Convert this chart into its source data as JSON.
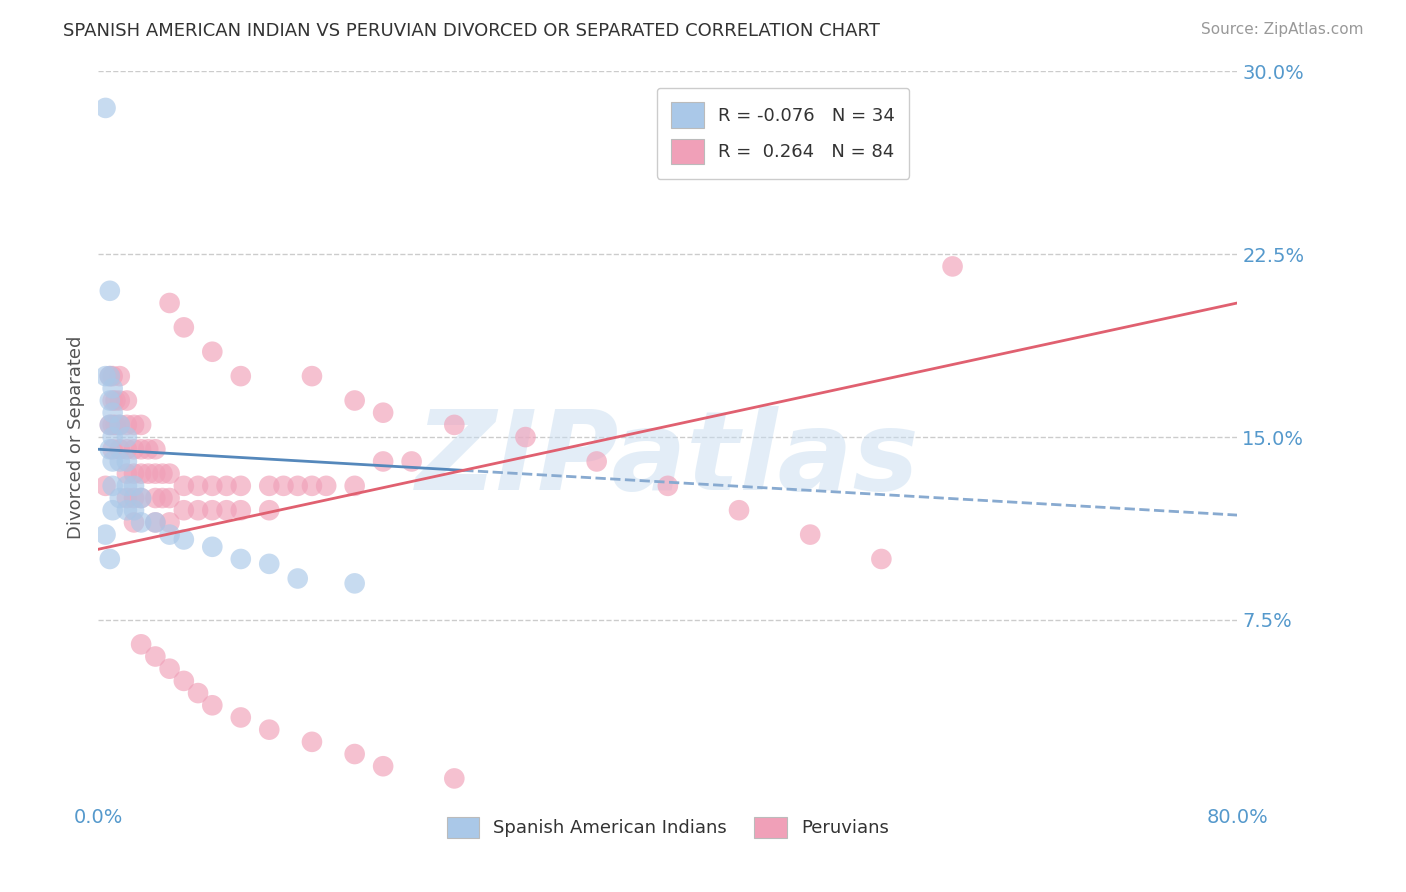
{
  "title": "SPANISH AMERICAN INDIAN VS PERUVIAN DIVORCED OR SEPARATED CORRELATION CHART",
  "source_text": "Source: ZipAtlas.com",
  "ylabel": "Divorced or Separated",
  "xmin": 0.0,
  "xmax": 0.8,
  "ymin": 0.0,
  "ymax": 0.3,
  "xtick_positions": [
    0.0,
    0.8
  ],
  "xtick_labels": [
    "0.0%",
    "80.0%"
  ],
  "ytick_positions": [
    0.075,
    0.15,
    0.225,
    0.3
  ],
  "ytick_labels": [
    "7.5%",
    "15.0%",
    "22.5%",
    "30.0%"
  ],
  "grid_color": "#cccccc",
  "background_color": "#ffffff",
  "color_blue": "#aac8e8",
  "color_pink": "#f0a0b8",
  "line_blue_solid": "#5588bb",
  "line_blue_dashed": "#88aad0",
  "line_pink": "#e06070",
  "tick_color": "#5599cc",
  "legend_label1": "Spanish American Indians",
  "legend_label2": "Peruvians",
  "watermark": "ZIPatlas",
  "blue_x": [
    0.005,
    0.005,
    0.008,
    0.008,
    0.008,
    0.008,
    0.008,
    0.01,
    0.01,
    0.01,
    0.01,
    0.01,
    0.01,
    0.015,
    0.015,
    0.015,
    0.02,
    0.02,
    0.02,
    0.02,
    0.025,
    0.025,
    0.03,
    0.03,
    0.04,
    0.05,
    0.06,
    0.08,
    0.1,
    0.12,
    0.14,
    0.18,
    0.005,
    0.008
  ],
  "blue_y": [
    0.285,
    0.175,
    0.21,
    0.175,
    0.165,
    0.155,
    0.145,
    0.17,
    0.16,
    0.15,
    0.14,
    0.13,
    0.12,
    0.155,
    0.14,
    0.125,
    0.15,
    0.14,
    0.13,
    0.12,
    0.13,
    0.12,
    0.125,
    0.115,
    0.115,
    0.11,
    0.108,
    0.105,
    0.1,
    0.098,
    0.092,
    0.09,
    0.11,
    0.1
  ],
  "pink_x": [
    0.005,
    0.008,
    0.008,
    0.01,
    0.01,
    0.01,
    0.01,
    0.012,
    0.012,
    0.015,
    0.015,
    0.015,
    0.015,
    0.02,
    0.02,
    0.02,
    0.02,
    0.02,
    0.025,
    0.025,
    0.025,
    0.025,
    0.025,
    0.03,
    0.03,
    0.03,
    0.03,
    0.035,
    0.035,
    0.04,
    0.04,
    0.04,
    0.04,
    0.045,
    0.045,
    0.05,
    0.05,
    0.05,
    0.06,
    0.06,
    0.07,
    0.07,
    0.08,
    0.08,
    0.09,
    0.09,
    0.1,
    0.1,
    0.12,
    0.12,
    0.13,
    0.14,
    0.15,
    0.16,
    0.18,
    0.2,
    0.22,
    0.05,
    0.06,
    0.08,
    0.1,
    0.15,
    0.18,
    0.2,
    0.25,
    0.3,
    0.35,
    0.4,
    0.45,
    0.5,
    0.55,
    0.6,
    0.03,
    0.04,
    0.05,
    0.06,
    0.07,
    0.08,
    0.1,
    0.12,
    0.15,
    0.18,
    0.2,
    0.25
  ],
  "pink_y": [
    0.13,
    0.175,
    0.155,
    0.175,
    0.165,
    0.155,
    0.145,
    0.165,
    0.155,
    0.175,
    0.165,
    0.155,
    0.145,
    0.165,
    0.155,
    0.145,
    0.135,
    0.125,
    0.155,
    0.145,
    0.135,
    0.125,
    0.115,
    0.155,
    0.145,
    0.135,
    0.125,
    0.145,
    0.135,
    0.145,
    0.135,
    0.125,
    0.115,
    0.135,
    0.125,
    0.135,
    0.125,
    0.115,
    0.13,
    0.12,
    0.13,
    0.12,
    0.13,
    0.12,
    0.13,
    0.12,
    0.13,
    0.12,
    0.13,
    0.12,
    0.13,
    0.13,
    0.13,
    0.13,
    0.13,
    0.14,
    0.14,
    0.205,
    0.195,
    0.185,
    0.175,
    0.175,
    0.165,
    0.16,
    0.155,
    0.15,
    0.14,
    0.13,
    0.12,
    0.11,
    0.1,
    0.22,
    0.065,
    0.06,
    0.055,
    0.05,
    0.045,
    0.04,
    0.035,
    0.03,
    0.025,
    0.02,
    0.015,
    0.01
  ],
  "blue_line_x0": 0.0,
  "blue_line_x1": 0.8,
  "blue_line_y0": 0.145,
  "blue_line_y1": 0.118,
  "pink_line_x0": 0.0,
  "pink_line_x1": 0.8,
  "pink_line_y0": 0.104,
  "pink_line_y1": 0.205
}
